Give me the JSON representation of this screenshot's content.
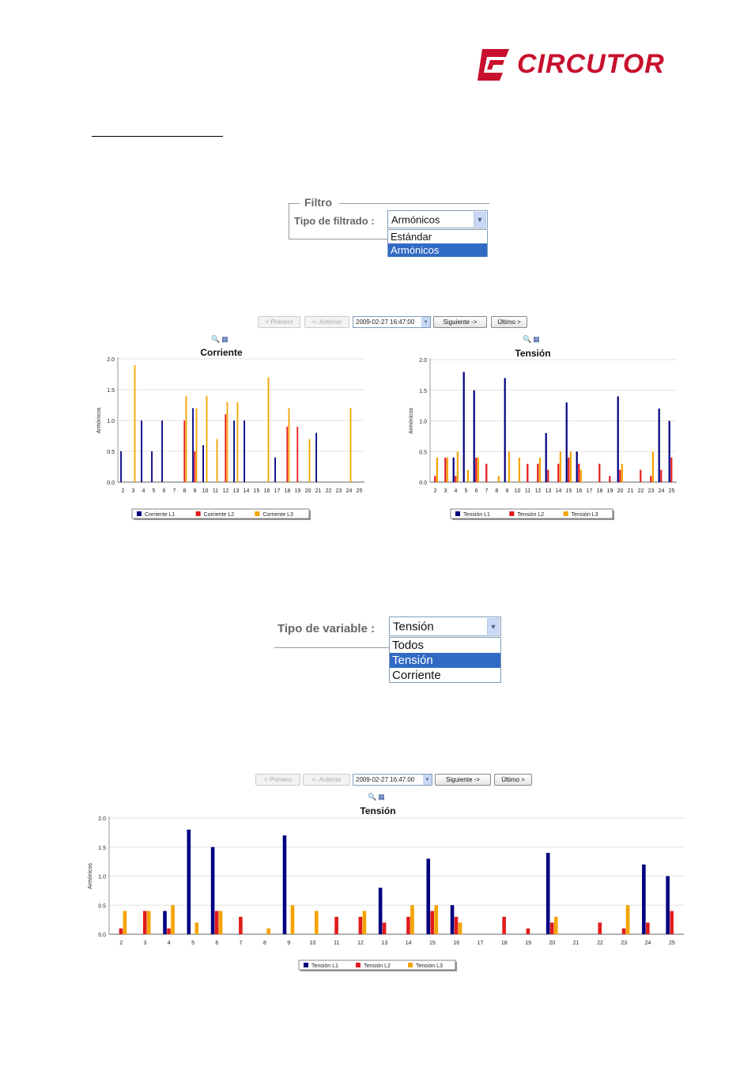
{
  "logo": {
    "text": "CIRCUTOR"
  },
  "filter_panel": {
    "legend": "Filtro",
    "label": "Tipo de filtrado :",
    "selected": "Armónicos",
    "options": [
      "Estándar",
      "Armónicos"
    ]
  },
  "variable_panel": {
    "label": "Tipo de variable :",
    "selected": "Tensión",
    "options": [
      "Todos",
      "Tensión",
      "Corriente"
    ]
  },
  "nav": {
    "first": "< Primero",
    "prev": "<- Anterior",
    "date": "2009-02-27 16:47:00",
    "next": "Siguiente ->",
    "last": "Último >"
  },
  "colors": {
    "L1": "#000080",
    "L2": "#e21b1b",
    "L3": "#f5a300"
  },
  "chart_data": [
    {
      "type": "bar",
      "title": "Corriente",
      "ylabel": "Armónicos",
      "ylim": [
        0,
        2.0
      ],
      "yticks": [
        "0.0",
        "0.5",
        "1.0",
        "1.5",
        "2.0"
      ],
      "categories": [
        "2",
        "3",
        "4",
        "5",
        "6",
        "7",
        "8",
        "9",
        "10",
        "11",
        "12",
        "13",
        "14",
        "15",
        "16",
        "17",
        "18",
        "19",
        "20",
        "21",
        "22",
        "23",
        "24",
        "25"
      ],
      "series": [
        {
          "name": "Corriente L1",
          "values": [
            0.5,
            0,
            1.0,
            0.5,
            1.0,
            0,
            0,
            1.2,
            0.6,
            0,
            0,
            1.0,
            1.0,
            0,
            0,
            0.4,
            0,
            0,
            0,
            0.8,
            0,
            0,
            0,
            0
          ]
        },
        {
          "name": "Corriente L2",
          "values": [
            0,
            0,
            0,
            0,
            0,
            0,
            1.0,
            0.5,
            0,
            0,
            1.1,
            0,
            0,
            0,
            0,
            0,
            0.9,
            0.9,
            0,
            0,
            0,
            0,
            0,
            0
          ]
        },
        {
          "name": "Corriente L3",
          "values": [
            0,
            1.9,
            0,
            0,
            0,
            0,
            1.4,
            1.2,
            1.4,
            0.7,
            1.3,
            1.3,
            0,
            0,
            1.7,
            0,
            1.2,
            0,
            0.7,
            0,
            0,
            0,
            1.2,
            0
          ]
        }
      ],
      "legend": "bottom"
    },
    {
      "type": "bar",
      "title": "Tensión",
      "ylabel": "Armónicos",
      "ylim": [
        0,
        2.0
      ],
      "yticks": [
        "0.0",
        "0.5",
        "1.0",
        "1.5",
        "2.0"
      ],
      "categories": [
        "2",
        "3",
        "4",
        "5",
        "6",
        "7",
        "8",
        "9",
        "10",
        "11",
        "12",
        "13",
        "14",
        "15",
        "16",
        "17",
        "18",
        "19",
        "20",
        "21",
        "22",
        "23",
        "24",
        "25"
      ],
      "series": [
        {
          "name": "Tensión L1",
          "values": [
            0,
            0,
            0.4,
            1.8,
            1.5,
            0,
            0,
            1.7,
            0,
            0,
            0,
            0.8,
            0,
            1.3,
            0.5,
            0,
            0,
            0,
            1.4,
            0,
            0,
            0,
            1.2,
            1.0
          ]
        },
        {
          "name": "Tensión L2",
          "values": [
            0.1,
            0.4,
            0.1,
            0,
            0.4,
            0.3,
            0,
            0,
            0,
            0.3,
            0.3,
            0.2,
            0.3,
            0.4,
            0.3,
            0,
            0.3,
            0.1,
            0.2,
            0,
            0.2,
            0.1,
            0.2,
            0.4
          ]
        },
        {
          "name": "Tensión L3",
          "values": [
            0.4,
            0.4,
            0.5,
            0.2,
            0.4,
            0,
            0.1,
            0.5,
            0.4,
            0,
            0.4,
            0,
            0.5,
            0.5,
            0.2,
            0,
            0,
            0,
            0.3,
            0,
            0,
            0.5,
            0,
            0
          ]
        }
      ],
      "legend": "bottom"
    },
    {
      "type": "bar",
      "title": "Tensión",
      "ylabel": "Armónicos",
      "ylim": [
        0,
        2.0
      ],
      "yticks": [
        "0.0",
        "0.5",
        "1.0",
        "1.5",
        "2.0"
      ],
      "categories": [
        "2",
        "3",
        "4",
        "5",
        "6",
        "7",
        "8",
        "9",
        "10",
        "11",
        "12",
        "13",
        "14",
        "15",
        "16",
        "17",
        "18",
        "19",
        "20",
        "21",
        "22",
        "23",
        "24",
        "25"
      ],
      "series": [
        {
          "name": "Tensión L1",
          "values": [
            0,
            0,
            0.4,
            1.8,
            1.5,
            0,
            0,
            1.7,
            0,
            0,
            0,
            0.8,
            0,
            1.3,
            0.5,
            0,
            0,
            0,
            1.4,
            0,
            0,
            0,
            1.2,
            1.0
          ]
        },
        {
          "name": "Tensión L2",
          "values": [
            0.1,
            0.4,
            0.1,
            0,
            0.4,
            0.3,
            0,
            0,
            0,
            0.3,
            0.3,
            0.2,
            0.3,
            0.4,
            0.3,
            0,
            0.3,
            0.1,
            0.2,
            0,
            0.2,
            0.1,
            0.2,
            0.4
          ]
        },
        {
          "name": "Tensión L3",
          "values": [
            0.4,
            0.4,
            0.5,
            0.2,
            0.4,
            0,
            0.1,
            0.5,
            0.4,
            0,
            0.4,
            0,
            0.5,
            0.5,
            0.2,
            0,
            0,
            0,
            0.3,
            0,
            0,
            0.5,
            0,
            0
          ]
        }
      ],
      "legend": "bottom"
    }
  ]
}
